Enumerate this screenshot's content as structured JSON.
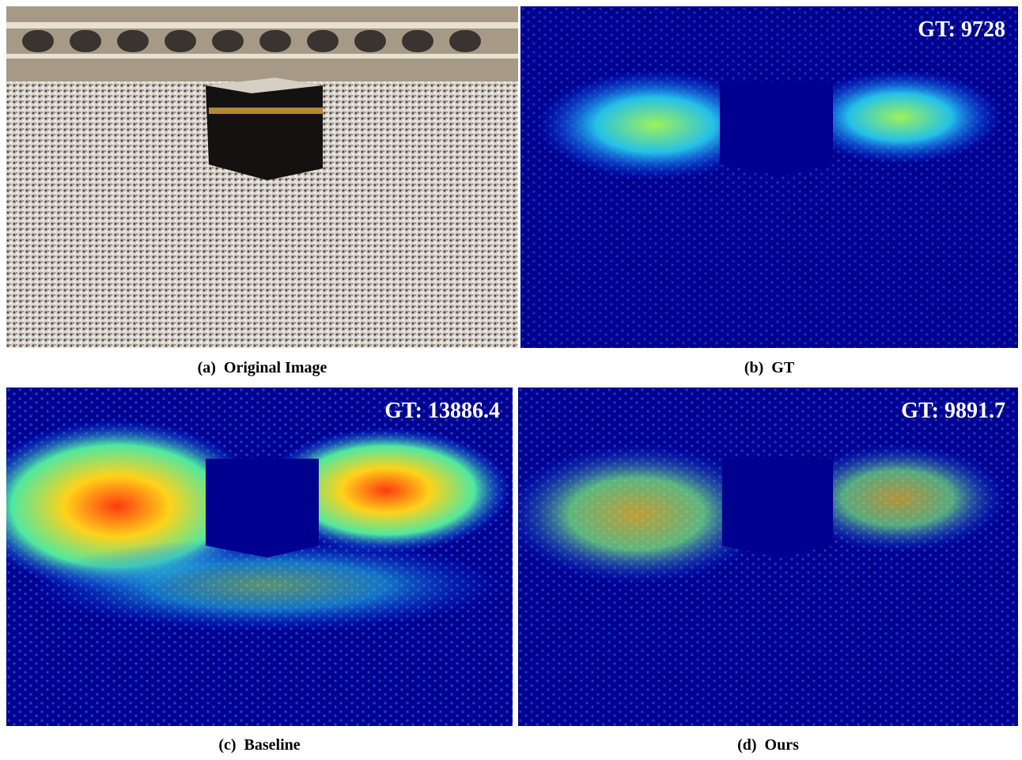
{
  "panels": [
    {
      "caption": "(a)  Original Image"
    },
    {
      "caption": "(b)  GT",
      "overlay": "GT: 9728"
    },
    {
      "caption": "(c)  Baseline",
      "overlay": "GT: 13886.4"
    },
    {
      "caption": "(d)  Ours",
      "overlay": "GT: 9891.7"
    }
  ]
}
